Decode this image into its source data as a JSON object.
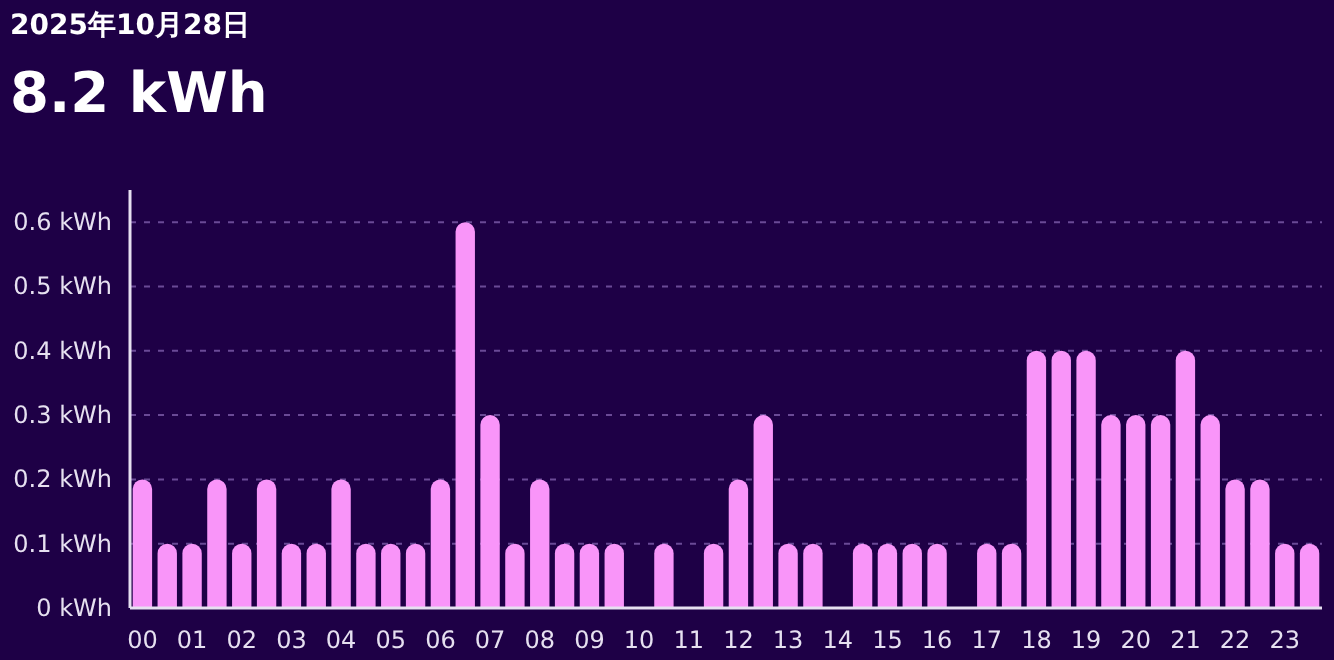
{
  "chart_data": {
    "type": "bar",
    "title": "2025年10月28日",
    "subtitle": "8.2 kWh",
    "categories": [
      "00",
      null,
      "01",
      null,
      "02",
      null,
      "03",
      null,
      "04",
      null,
      "05",
      null,
      "06",
      null,
      "07",
      null,
      "08",
      null,
      "09",
      null,
      "10",
      null,
      "11",
      null,
      "12",
      null,
      "13",
      null,
      "14",
      null,
      "15",
      null,
      "16",
      null,
      "17",
      null,
      "18",
      null,
      "19",
      null,
      "20",
      null,
      "21",
      null,
      "22",
      null,
      "23",
      null
    ],
    "values": [
      0.2,
      0.1,
      0.1,
      0.2,
      0.1,
      0.2,
      0.1,
      0.1,
      0.2,
      0.1,
      0.1,
      0.1,
      0.2,
      0.6,
      0.3,
      0.1,
      0.2,
      0.1,
      0.1,
      0.1,
      0,
      0.1,
      0,
      0.1,
      0.2,
      0.3,
      0.1,
      0.1,
      0,
      0.1,
      0.1,
      0.1,
      0.1,
      0,
      0.1,
      0.1,
      0.4,
      0.4,
      0.4,
      0.3,
      0.3,
      0.3,
      0.4,
      0.3,
      0.2,
      0.2,
      0.1,
      0.1
    ],
    "color": "#f995f9",
    "ylim": [
      0,
      0.65
    ],
    "yticks": [
      {
        "value": 0,
        "label": "0 kWh"
      },
      {
        "value": 0.1,
        "label": "0.1 kWh"
      },
      {
        "value": 0.2,
        "label": "0.2 kWh"
      },
      {
        "value": 0.3,
        "label": "0.3 kWh"
      },
      {
        "value": 0.4,
        "label": "0.4 kWh"
      },
      {
        "value": 0.5,
        "label": "0.5 kWh"
      },
      {
        "value": 0.6,
        "label": "0.6 kWh"
      }
    ],
    "grid": "y"
  }
}
